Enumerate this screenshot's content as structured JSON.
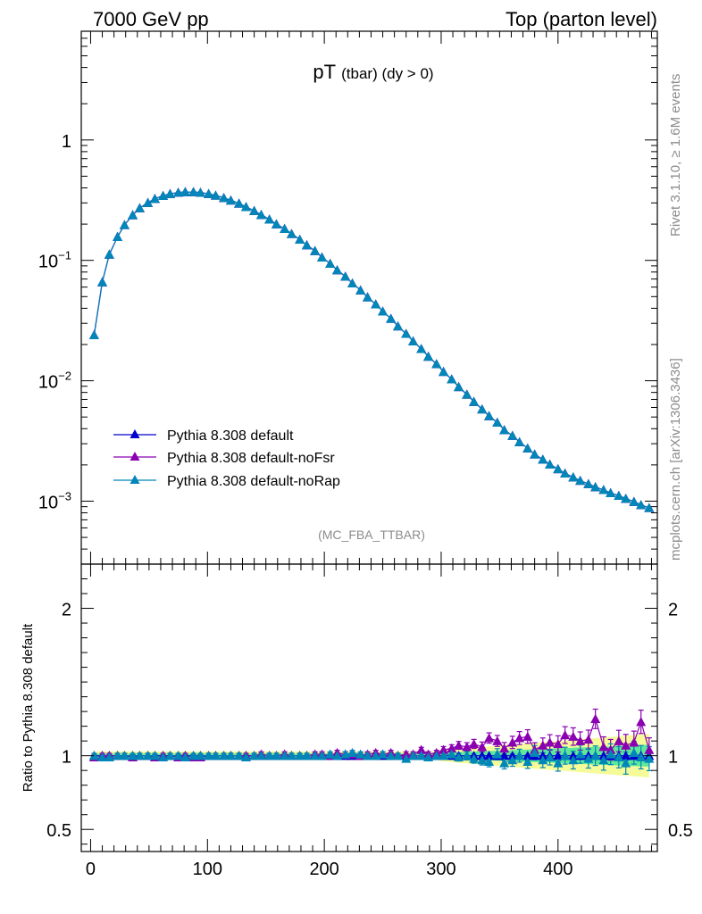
{
  "header": {
    "left": "7000 GeV pp",
    "right": "Top (parton level)"
  },
  "title": {
    "main": "pT",
    "sub": "(tbar) (dy > 0)"
  },
  "analysis_label": "(MC_FBA_TTBAR)",
  "side_labels": {
    "rivet": "Rivet 3.1.10, ≥ 1.6M events",
    "mcplots": "mcplots.cern.ch [arXiv:1306.3436]"
  },
  "ratio_ylabel": "Ratio to Pythia 8.308 default",
  "legend": [
    {
      "label": "Pythia 8.308 default",
      "color": "#0000cc"
    },
    {
      "label": "Pythia 8.308 default-noFsr",
      "color": "#8a00b0"
    },
    {
      "label": "Pythia 8.308 default-noRap",
      "color": "#0087b8"
    }
  ],
  "colors": {
    "default": "#0000cc",
    "noFsr": "#8a00b0",
    "noRap": "#0087b8",
    "band_inner": "#5fe89a",
    "band_outer": "#f6fb9a"
  },
  "chart_data": [
    {
      "type": "line",
      "title": "pT (tbar) (dy > 0)",
      "yscale": "log",
      "xlim": [
        -8,
        485
      ],
      "ylim": [
        0.0003,
        8
      ],
      "yticks": [
        {
          "value": 1,
          "label": "1"
        },
        {
          "value": 0.1,
          "label": "10",
          "sup": "−1"
        },
        {
          "value": 0.01,
          "label": "10",
          "sup": "−2"
        },
        {
          "value": 0.001,
          "label": "10",
          "sup": "−3"
        }
      ],
      "x": [
        3,
        10,
        16,
        23,
        29,
        36,
        42,
        49,
        55,
        62,
        68,
        75,
        81,
        88,
        94,
        101,
        107,
        114,
        120,
        127,
        133,
        140,
        146,
        153,
        159,
        166,
        172,
        179,
        185,
        192,
        198,
        205,
        211,
        218,
        224,
        231,
        237,
        244,
        250,
        257,
        263,
        270,
        276,
        283,
        289,
        296,
        302,
        309,
        315,
        322,
        328,
        335,
        341,
        348,
        354,
        361,
        367,
        374,
        380,
        387,
        393,
        400,
        406,
        413,
        419,
        426,
        432,
        439,
        445,
        452,
        458,
        465,
        471,
        478
      ],
      "series": [
        {
          "name": "Pythia 8.308 default",
          "values": [
            0.024,
            0.066,
            0.112,
            0.157,
            0.197,
            0.238,
            0.272,
            0.301,
            0.325,
            0.344,
            0.357,
            0.366,
            0.37,
            0.37,
            0.366,
            0.357,
            0.346,
            0.331,
            0.315,
            0.297,
            0.278,
            0.258,
            0.239,
            0.219,
            0.2,
            0.183,
            0.166,
            0.149,
            0.134,
            0.12,
            0.106,
            0.094,
            0.083,
            0.0735,
            0.0645,
            0.0565,
            0.0495,
            0.0432,
            0.0377,
            0.0328,
            0.0284,
            0.0246,
            0.0213,
            0.0184,
            0.0159,
            0.0138,
            0.0119,
            0.0103,
            0.0089,
            0.0077,
            0.0067,
            0.0058,
            0.0051,
            0.0045,
            0.0039,
            0.0035,
            0.0031,
            0.00275,
            0.00245,
            0.00222,
            0.00202,
            0.00185,
            0.0017,
            0.00158,
            0.00148,
            0.00139,
            0.00131,
            0.00124,
            0.00117,
            0.00111,
            0.00105,
            0.00099,
            0.00093,
            0.00088
          ]
        },
        {
          "name": "Pythia 8.308 default-noFsr",
          "values": [
            0.024,
            0.066,
            0.112,
            0.157,
            0.197,
            0.238,
            0.272,
            0.301,
            0.325,
            0.344,
            0.357,
            0.366,
            0.37,
            0.37,
            0.366,
            0.357,
            0.346,
            0.331,
            0.315,
            0.297,
            0.278,
            0.258,
            0.239,
            0.219,
            0.2,
            0.183,
            0.166,
            0.149,
            0.134,
            0.12,
            0.106,
            0.094,
            0.083,
            0.0735,
            0.0645,
            0.0565,
            0.0495,
            0.0432,
            0.0377,
            0.0328,
            0.0284,
            0.0246,
            0.0213,
            0.0184,
            0.0159,
            0.0138,
            0.0119,
            0.0103,
            0.0089,
            0.0077,
            0.0067,
            0.0058,
            0.0051,
            0.0045,
            0.0039,
            0.0035,
            0.0031,
            0.00275,
            0.00245,
            0.00222,
            0.00202,
            0.00185,
            0.0017,
            0.00158,
            0.00148,
            0.00139,
            0.00131,
            0.00124,
            0.00117,
            0.00111,
            0.00105,
            0.00099,
            0.00093,
            0.00088
          ]
        },
        {
          "name": "Pythia 8.308 default-noRap",
          "values": [
            0.024,
            0.066,
            0.112,
            0.157,
            0.197,
            0.238,
            0.272,
            0.301,
            0.325,
            0.344,
            0.357,
            0.366,
            0.37,
            0.37,
            0.366,
            0.357,
            0.346,
            0.331,
            0.315,
            0.297,
            0.278,
            0.258,
            0.239,
            0.219,
            0.2,
            0.183,
            0.166,
            0.149,
            0.134,
            0.12,
            0.106,
            0.094,
            0.083,
            0.0735,
            0.0645,
            0.0565,
            0.0495,
            0.0432,
            0.0377,
            0.0328,
            0.0284,
            0.0246,
            0.0213,
            0.0184,
            0.0159,
            0.0138,
            0.0119,
            0.0103,
            0.0089,
            0.0077,
            0.0067,
            0.0058,
            0.0051,
            0.0045,
            0.0039,
            0.0035,
            0.0031,
            0.00275,
            0.00245,
            0.00222,
            0.00202,
            0.00185,
            0.0017,
            0.00158,
            0.00148,
            0.00139,
            0.00131,
            0.00124,
            0.00117,
            0.00111,
            0.00105,
            0.00099,
            0.00093,
            0.00088
          ]
        }
      ]
    },
    {
      "type": "line",
      "title": "Ratio to Pythia 8.308 default",
      "ylabel": "Ratio to Pythia 8.308 default",
      "xlim": [
        -8,
        485
      ],
      "ylim": [
        0.35,
        2.3
      ],
      "xticks": [
        0,
        100,
        200,
        300,
        400
      ],
      "yticks": [
        0.5,
        1,
        2
      ],
      "x": [
        3,
        10,
        16,
        23,
        29,
        36,
        42,
        49,
        55,
        62,
        68,
        75,
        81,
        88,
        94,
        101,
        107,
        114,
        120,
        127,
        133,
        140,
        146,
        153,
        159,
        166,
        172,
        179,
        185,
        192,
        198,
        205,
        211,
        218,
        224,
        231,
        237,
        244,
        250,
        257,
        263,
        270,
        276,
        283,
        289,
        296,
        302,
        309,
        315,
        322,
        328,
        335,
        341,
        348,
        354,
        361,
        367,
        374,
        380,
        387,
        393,
        400,
        406,
        413,
        419,
        426,
        432,
        439,
        445,
        452,
        458,
        465,
        471,
        478
      ],
      "band": {
        "inner": [
          0.015,
          0.015,
          0.015,
          0.015,
          0.015,
          0.015,
          0.015,
          0.015,
          0.015,
          0.015,
          0.015,
          0.015,
          0.015,
          0.015,
          0.015,
          0.015,
          0.015,
          0.015,
          0.015,
          0.015,
          0.015,
          0.015,
          0.015,
          0.015,
          0.015,
          0.015,
          0.015,
          0.015,
          0.015,
          0.015,
          0.015,
          0.015,
          0.015,
          0.015,
          0.015,
          0.015,
          0.015,
          0.015,
          0.015,
          0.015,
          0.015,
          0.015,
          0.015,
          0.015,
          0.015,
          0.015,
          0.02,
          0.022,
          0.024,
          0.026,
          0.028,
          0.03,
          0.032,
          0.034,
          0.036,
          0.038,
          0.04,
          0.042,
          0.044,
          0.046,
          0.048,
          0.05,
          0.052,
          0.054,
          0.056,
          0.058,
          0.06,
          0.062,
          0.064,
          0.066,
          0.068,
          0.07,
          0.072,
          0.074
        ],
        "outer": [
          0.03,
          0.03,
          0.03,
          0.03,
          0.03,
          0.03,
          0.03,
          0.03,
          0.03,
          0.03,
          0.03,
          0.03,
          0.03,
          0.03,
          0.03,
          0.03,
          0.03,
          0.03,
          0.03,
          0.03,
          0.03,
          0.03,
          0.03,
          0.03,
          0.03,
          0.03,
          0.03,
          0.03,
          0.03,
          0.03,
          0.03,
          0.03,
          0.03,
          0.03,
          0.03,
          0.03,
          0.03,
          0.03,
          0.03,
          0.03,
          0.03,
          0.03,
          0.03,
          0.03,
          0.03,
          0.03,
          0.04,
          0.044,
          0.048,
          0.052,
          0.056,
          0.06,
          0.064,
          0.068,
          0.072,
          0.076,
          0.08,
          0.084,
          0.088,
          0.092,
          0.096,
          0.1,
          0.104,
          0.108,
          0.112,
          0.116,
          0.12,
          0.124,
          0.128,
          0.132,
          0.136,
          0.14,
          0.144,
          0.148
        ]
      },
      "series": [
        {
          "name": "Pythia 8.308 default",
          "values": [
            1,
            1,
            1,
            1,
            1,
            1,
            1,
            1,
            1,
            1,
            1,
            1,
            1,
            1,
            1,
            1,
            1,
            1,
            1,
            1,
            1,
            1,
            1,
            1,
            1,
            1,
            1,
            1,
            1,
            1,
            1,
            1,
            1,
            1,
            1,
            1,
            1,
            1,
            1,
            1,
            1,
            1,
            1,
            1,
            1,
            1,
            1,
            1,
            1,
            1,
            1,
            1,
            1,
            1,
            1,
            1,
            1,
            1,
            1,
            1,
            1,
            1,
            1,
            1,
            1,
            1,
            1,
            1,
            1,
            1,
            1,
            1,
            1,
            1
          ]
        },
        {
          "name": "Pythia 8.308 default-noFsr",
          "values": [
            0.99,
            1.0,
            1.0,
            1.0,
            1.0,
            0.99,
            1.0,
            1.0,
            0.99,
            1.0,
            1.0,
            0.99,
            1.0,
            0.99,
            0.99,
            1.0,
            1.0,
            1.0,
            1.0,
            1.0,
            1.0,
            1.0,
            1.01,
            1.0,
            1.0,
            1.01,
            1.0,
            1.0,
            1.0,
            1.01,
            1.01,
            1.0,
            1.02,
            1.01,
            1.01,
            1.0,
            1.01,
            1.02,
            1.01,
            1.02,
            1.0,
            1.01,
            1.01,
            1.04,
            1.01,
            1.02,
            1.04,
            1.05,
            1.07,
            1.06,
            1.08,
            1.06,
            1.12,
            1.1,
            1.05,
            1.09,
            1.12,
            1.13,
            1.04,
            1.07,
            1.09,
            1.08,
            1.14,
            1.13,
            1.1,
            1.11,
            1.25,
            1.06,
            1.04,
            1.1,
            1.07,
            1.09,
            1.23,
            1.04
          ]
        },
        {
          "name": "Pythia 8.308 default-noRap",
          "values": [
            1.0,
            0.99,
            0.99,
            1.0,
            1.0,
            1.0,
            1.0,
            1.0,
            1.0,
            0.99,
            1.0,
            1.0,
            0.99,
            1.0,
            1.0,
            1.0,
            1.0,
            1.0,
            1.0,
            1.0,
            0.99,
            1.0,
            1.0,
            1.0,
            1.0,
            1.0,
            1.0,
            1.0,
            1.0,
            1.0,
            1.0,
            1.01,
            1.0,
            1.01,
            1.02,
            1.01,
            1.0,
            1.0,
            1.01,
            1.0,
            1.0,
            0.98,
            1.0,
            1.0,
            0.99,
            1.0,
            1.0,
            1.01,
            0.99,
            1.0,
            0.98,
            0.97,
            0.96,
            1.01,
            0.95,
            0.97,
            1.0,
            0.96,
            1.02,
            0.97,
            0.99,
            0.95,
            1.0,
            0.97,
            1.01,
            0.98,
            1.0,
            0.97,
            1.01,
            0.99,
            0.95,
            1.02,
            0.99,
            0.98
          ]
        }
      ]
    }
  ]
}
